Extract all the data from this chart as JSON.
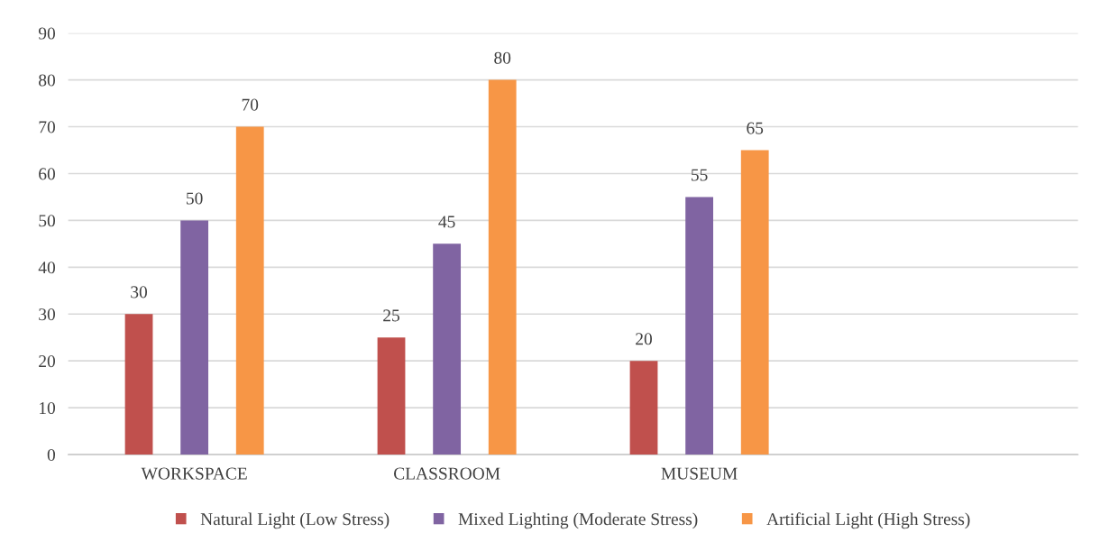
{
  "chart_data": {
    "type": "bar",
    "categories": [
      "WORKSPACE",
      "CLASSROOM",
      "MUSEUM",
      null
    ],
    "series": [
      {
        "name": "Natural Light (Low Stress)",
        "color": "#c0504d",
        "values": [
          30,
          25,
          20,
          null
        ]
      },
      {
        "name": "Mixed Lighting (Moderate Stress)",
        "color": "#8064a2",
        "values": [
          50,
          45,
          55,
          null
        ]
      },
      {
        "name": "Artificial Light (High Stress)",
        "color": "#f79646",
        "values": [
          70,
          80,
          65,
          null
        ]
      }
    ],
    "ylim": [
      0,
      90
    ],
    "yticks": [
      0,
      10,
      20,
      30,
      40,
      50,
      60,
      70,
      80,
      90
    ],
    "grid": "y",
    "legend": "bottom",
    "data_labels": true
  }
}
